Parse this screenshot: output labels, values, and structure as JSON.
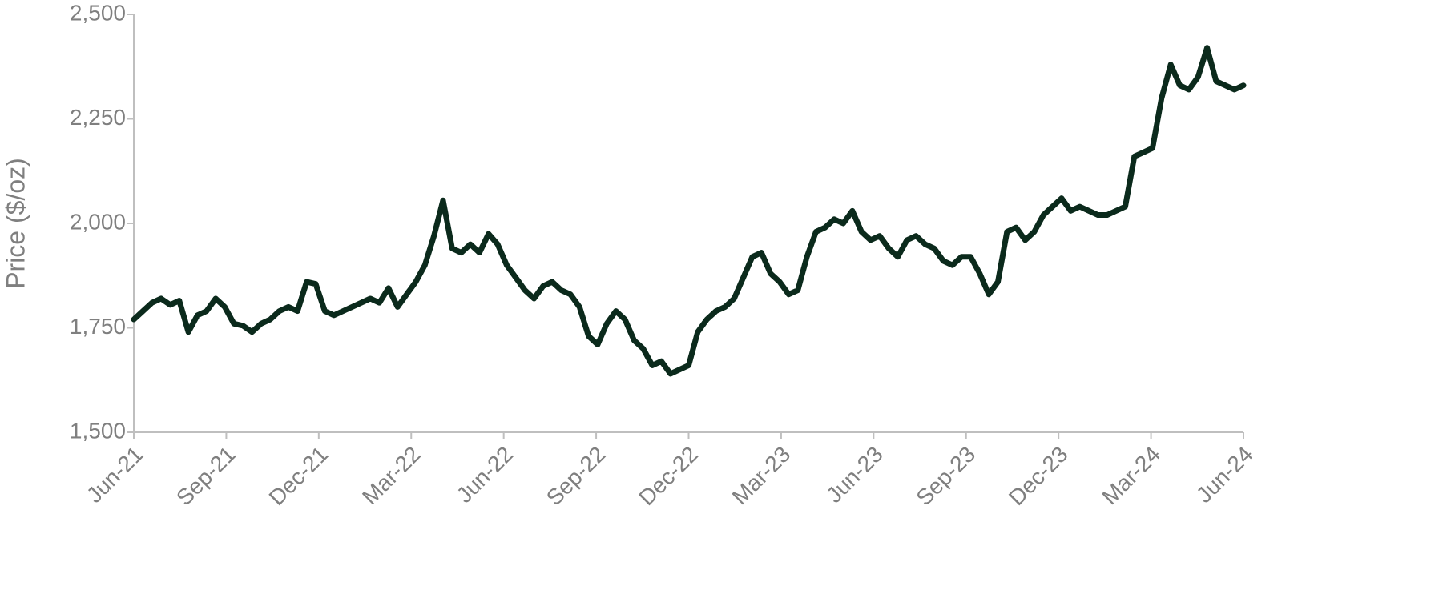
{
  "chart_data": {
    "type": "line",
    "y_label": "Price ($/oz)",
    "color": "#0b2a1c",
    "xticks": [
      "Jun-21",
      "Sep-21",
      "Dec-21",
      "Mar-22",
      "Jun-22",
      "Sep-22",
      "Dec-22",
      "Mar-23",
      "Jun-23",
      "Sep-23",
      "Dec-23",
      "Mar-24",
      "Jun-24"
    ],
    "values": [
      1770,
      1790,
      1810,
      1820,
      1805,
      1815,
      1740,
      1780,
      1790,
      1820,
      1800,
      1760,
      1755,
      1740,
      1760,
      1770,
      1790,
      1800,
      1790,
      1860,
      1855,
      1790,
      1780,
      1790,
      1800,
      1810,
      1820,
      1810,
      1845,
      1800,
      1830,
      1860,
      1900,
      1970,
      2055,
      1940,
      1930,
      1950,
      1930,
      1975,
      1950,
      1900,
      1870,
      1840,
      1820,
      1850,
      1860,
      1840,
      1830,
      1800,
      1730,
      1710,
      1760,
      1790,
      1770,
      1720,
      1700,
      1660,
      1670,
      1640,
      1650,
      1660,
      1740,
      1770,
      1790,
      1800,
      1820,
      1870,
      1920,
      1930,
      1880,
      1860,
      1830,
      1840,
      1920,
      1980,
      1990,
      2010,
      2000,
      2030,
      1980,
      1960,
      1970,
      1940,
      1920,
      1960,
      1970,
      1950,
      1940,
      1910,
      1900,
      1920,
      1920,
      1880,
      1830,
      1860,
      1980,
      1990,
      1960,
      1980,
      2020,
      2040,
      2060,
      2030,
      2040,
      2030,
      2020,
      2020,
      2030,
      2040,
      2160,
      2170,
      2180,
      2300,
      2380,
      2330,
      2320,
      2350,
      2420,
      2340,
      2330,
      2320,
      2330
    ],
    "ylim": [
      1500,
      2500
    ],
    "yticks": [
      {
        "value": 1500,
        "label": "1,500"
      },
      {
        "value": 1750,
        "label": "1,750"
      },
      {
        "value": 2000,
        "label": "2,000"
      },
      {
        "value": 2250,
        "label": "2,250"
      },
      {
        "value": 2500,
        "label": "2,500"
      }
    ]
  }
}
